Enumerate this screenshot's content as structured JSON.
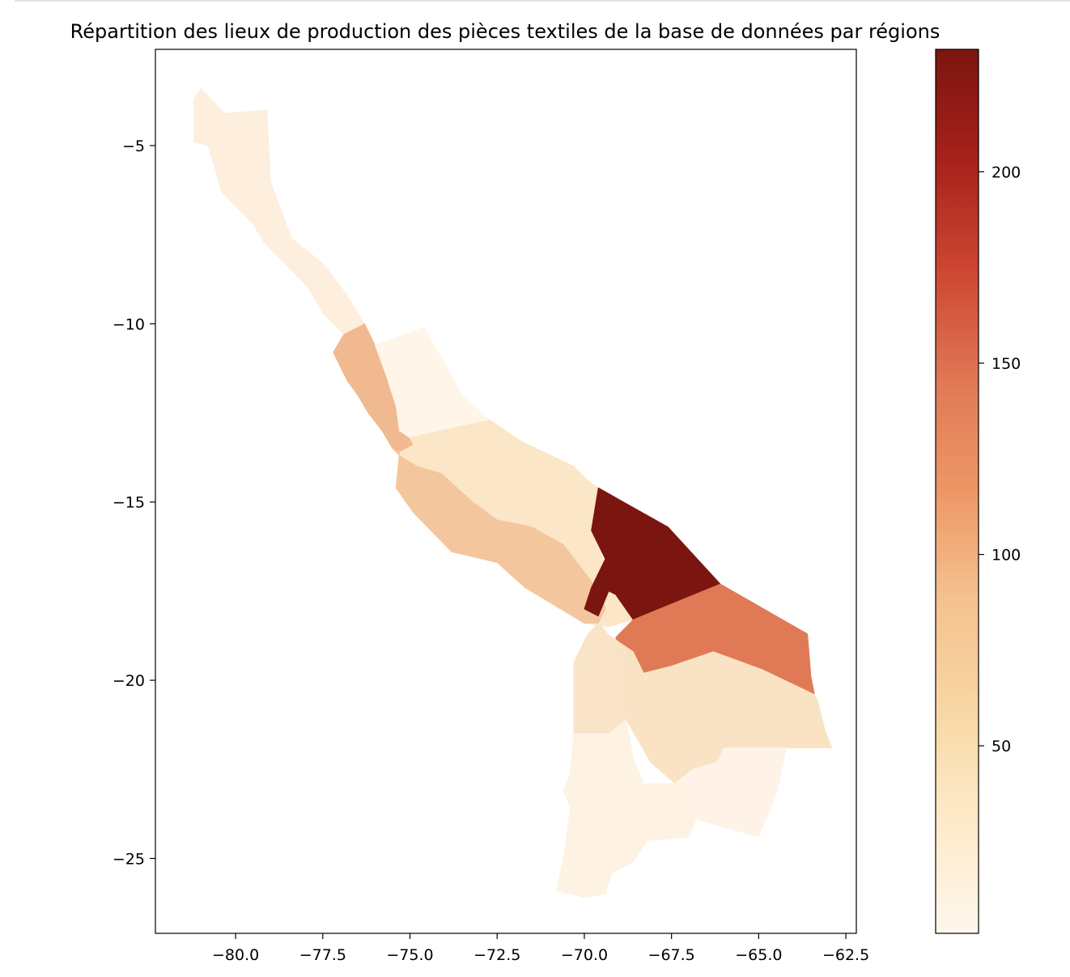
{
  "chart_data": {
    "type": "choropleth",
    "title": "Répartition des lieux de production des pièces textiles de la base de données par régions",
    "xlabel": "",
    "ylabel": "",
    "xlim": [
      -82.3,
      -62.2
    ],
    "ylim": [
      -27.1,
      -2.3
    ],
    "xticks": [
      -80.0,
      -77.5,
      -75.0,
      -72.5,
      -70.0,
      -67.5,
      -65.0,
      -62.5
    ],
    "xtick_labels": [
      "−80.0",
      "−77.5",
      "−75.0",
      "−72.5",
      "−70.0",
      "−67.5",
      "−65.0",
      "−62.5"
    ],
    "yticks": [
      -5,
      -10,
      -15,
      -20,
      -25
    ],
    "ytick_labels": [
      "−5",
      "−10",
      "−15",
      "−20",
      "−25"
    ],
    "colormap": "OrRd",
    "color_range": [
      1,
      232
    ],
    "colorbar_ticks": [
      50,
      100,
      150,
      200
    ],
    "colorbar_tick_labels": [
      "50",
      "100",
      "150",
      "200"
    ],
    "grid": false,
    "regions": [
      {
        "id": "north-coast",
        "value": 10,
        "color": "#fdeedd",
        "coords": [
          [
            -81.0,
            -3.4
          ],
          [
            -80.3,
            -4.1
          ],
          [
            -79.1,
            -4.0
          ],
          [
            -79.0,
            -6.0
          ],
          [
            -78.4,
            -7.6
          ],
          [
            -77.5,
            -8.3
          ],
          [
            -76.8,
            -9.2
          ],
          [
            -76.3,
            -10.0
          ],
          [
            -76.9,
            -10.3
          ],
          [
            -77.5,
            -9.7
          ],
          [
            -77.9,
            -9.0
          ],
          [
            -78.5,
            -8.4
          ],
          [
            -79.2,
            -7.7
          ],
          [
            -79.5,
            -7.2
          ],
          [
            -80.0,
            -6.7
          ],
          [
            -80.4,
            -6.3
          ],
          [
            -80.6,
            -5.6
          ],
          [
            -80.8,
            -5.0
          ],
          [
            -81.2,
            -4.9
          ],
          [
            -81.2,
            -4.4
          ],
          [
            -81.2,
            -3.7
          ]
        ]
      },
      {
        "id": "central-coast-north",
        "value": 95,
        "color": "#f1b990",
        "coords": [
          [
            -76.9,
            -10.3
          ],
          [
            -76.3,
            -10.0
          ],
          [
            -76.0,
            -10.6
          ],
          [
            -75.7,
            -11.4
          ],
          [
            -75.4,
            -12.3
          ],
          [
            -75.3,
            -13.0
          ],
          [
            -75.0,
            -13.2
          ],
          [
            -74.9,
            -13.4
          ],
          [
            -75.3,
            -13.6
          ],
          [
            -75.5,
            -13.5
          ],
          [
            -75.8,
            -13.0
          ],
          [
            -76.2,
            -12.5
          ],
          [
            -76.5,
            -12.0
          ],
          [
            -76.8,
            -11.6
          ],
          [
            -77.0,
            -11.2
          ],
          [
            -77.2,
            -10.8
          ]
        ]
      },
      {
        "id": "central-highlands-north",
        "value": 5,
        "color": "#fff5e8",
        "coords": [
          [
            -75.7,
            -11.4
          ],
          [
            -76.0,
            -10.6
          ],
          [
            -74.6,
            -10.1
          ],
          [
            -73.5,
            -12.0
          ],
          [
            -72.7,
            -12.7
          ],
          [
            -74.6,
            -13.1
          ],
          [
            -75.0,
            -13.2
          ],
          [
            -75.3,
            -13.0
          ],
          [
            -75.4,
            -12.3
          ]
        ]
      },
      {
        "id": "central-andes",
        "value": 25,
        "color": "#fbe6c7",
        "coords": [
          [
            -74.9,
            -13.4
          ],
          [
            -75.0,
            -13.2
          ],
          [
            -74.6,
            -13.1
          ],
          [
            -72.7,
            -12.7
          ],
          [
            -71.8,
            -13.3
          ],
          [
            -70.3,
            -14.0
          ],
          [
            -69.9,
            -14.4
          ],
          [
            -69.6,
            -14.6
          ],
          [
            -69.8,
            -15.8
          ],
          [
            -69.5,
            -16.5
          ],
          [
            -69.1,
            -17.4
          ],
          [
            -68.6,
            -18.3
          ],
          [
            -69.3,
            -18.5
          ],
          [
            -70.0,
            -18.4
          ],
          [
            -71.7,
            -17.4
          ],
          [
            -72.5,
            -16.7
          ],
          [
            -73.8,
            -16.4
          ],
          [
            -74.9,
            -15.3
          ],
          [
            -75.4,
            -14.6
          ],
          [
            -75.3,
            -13.6
          ]
        ]
      },
      {
        "id": "south-coast",
        "value": 80,
        "color": "#f4c69e",
        "coords": [
          [
            -75.5,
            -13.5
          ],
          [
            -75.3,
            -13.6
          ],
          [
            -75.4,
            -14.6
          ],
          [
            -74.9,
            -15.3
          ],
          [
            -73.8,
            -16.4
          ],
          [
            -72.5,
            -16.7
          ],
          [
            -71.7,
            -17.4
          ],
          [
            -70.0,
            -18.4
          ],
          [
            -69.6,
            -18.4
          ],
          [
            -69.4,
            -18.0
          ],
          [
            -69.5,
            -17.6
          ],
          [
            -70.6,
            -16.2
          ],
          [
            -71.5,
            -15.7
          ],
          [
            -72.5,
            -15.5
          ],
          [
            -73.2,
            -15.0
          ],
          [
            -74.1,
            -14.2
          ],
          [
            -74.8,
            -14.0
          ],
          [
            -75.3,
            -13.7
          ]
        ]
      },
      {
        "id": "altiplano-north",
        "value": 232,
        "color": "#7b1510",
        "coords": [
          [
            -69.6,
            -14.6
          ],
          [
            -67.6,
            -15.7
          ],
          [
            -66.1,
            -17.3
          ],
          [
            -68.6,
            -18.3
          ],
          [
            -69.1,
            -17.6
          ],
          [
            -69.3,
            -17.5
          ],
          [
            -69.6,
            -18.2
          ],
          [
            -70.0,
            -18.0
          ],
          [
            -69.8,
            -17.4
          ],
          [
            -69.4,
            -16.6
          ],
          [
            -69.8,
            -15.8
          ],
          [
            -69.7,
            -15.2
          ]
        ]
      },
      {
        "id": "altiplano-central",
        "value": 135,
        "color": "#e07a56",
        "coords": [
          [
            -68.6,
            -18.3
          ],
          [
            -66.1,
            -17.3
          ],
          [
            -63.6,
            -18.7
          ],
          [
            -63.5,
            -19.9
          ],
          [
            -63.4,
            -20.4
          ],
          [
            -64.9,
            -19.7
          ],
          [
            -66.3,
            -19.2
          ],
          [
            -67.5,
            -19.6
          ],
          [
            -68.3,
            -19.8
          ],
          [
            -68.9,
            -19.4
          ],
          [
            -69.1,
            -18.8
          ]
        ]
      },
      {
        "id": "altiplano-south",
        "value": 22,
        "color": "#fae3c4",
        "coords": [
          [
            -63.4,
            -20.4
          ],
          [
            -64.9,
            -19.7
          ],
          [
            -66.3,
            -19.2
          ],
          [
            -67.5,
            -19.6
          ],
          [
            -68.3,
            -19.8
          ],
          [
            -68.6,
            -19.2
          ],
          [
            -69.5,
            -18.6
          ],
          [
            -69.9,
            -18.7
          ],
          [
            -70.3,
            -19.5
          ],
          [
            -70.3,
            -21.5
          ],
          [
            -69.3,
            -21.5
          ],
          [
            -68.8,
            -21.1
          ],
          [
            -68.1,
            -22.3
          ],
          [
            -67.4,
            -22.9
          ],
          [
            -66.9,
            -22.5
          ],
          [
            -66.2,
            -22.3
          ],
          [
            -66.0,
            -21.9
          ],
          [
            -64.6,
            -21.9
          ],
          [
            -63.6,
            -21.9
          ],
          [
            -62.9,
            -21.9
          ],
          [
            -63.1,
            -21.4
          ],
          [
            -63.3,
            -20.6
          ]
        ]
      },
      {
        "id": "atacama-north",
        "value": 20,
        "color": "#fae4c8",
        "coords": [
          [
            -69.6,
            -18.4
          ],
          [
            -69.9,
            -18.7
          ],
          [
            -70.3,
            -19.5
          ],
          [
            -70.3,
            -21.5
          ],
          [
            -69.3,
            -21.5
          ],
          [
            -68.8,
            -21.1
          ],
          [
            -68.9,
            -20.3
          ],
          [
            -69.1,
            -19.1
          ],
          [
            -69.4,
            -18.6
          ]
        ]
      },
      {
        "id": "south-west",
        "value": 4,
        "color": "#fef2e3",
        "coords": [
          [
            -70.3,
            -21.5
          ],
          [
            -69.3,
            -21.5
          ],
          [
            -68.8,
            -21.1
          ],
          [
            -68.6,
            -22.2
          ],
          [
            -68.3,
            -22.9
          ],
          [
            -67.4,
            -22.9
          ],
          [
            -67.1,
            -23.1
          ],
          [
            -66.8,
            -23.9
          ],
          [
            -67.0,
            -24.4
          ],
          [
            -68.2,
            -24.5
          ],
          [
            -68.6,
            -25.1
          ],
          [
            -69.2,
            -25.4
          ],
          [
            -69.4,
            -26.0
          ],
          [
            -70.0,
            -26.1
          ],
          [
            -70.8,
            -25.9
          ],
          [
            -70.6,
            -25.0
          ],
          [
            -70.4,
            -23.6
          ],
          [
            -70.6,
            -23.1
          ],
          [
            -70.4,
            -22.6
          ]
        ]
      },
      {
        "id": "south-east",
        "value": 3,
        "color": "#fef3e6",
        "coords": [
          [
            -67.1,
            -23.1
          ],
          [
            -66.8,
            -23.9
          ],
          [
            -65.0,
            -24.4
          ],
          [
            -64.5,
            -23.2
          ],
          [
            -64.2,
            -21.9
          ],
          [
            -64.6,
            -21.9
          ],
          [
            -66.0,
            -21.9
          ],
          [
            -66.2,
            -22.3
          ],
          [
            -66.9,
            -22.5
          ],
          [
            -67.4,
            -22.9
          ]
        ]
      }
    ]
  }
}
